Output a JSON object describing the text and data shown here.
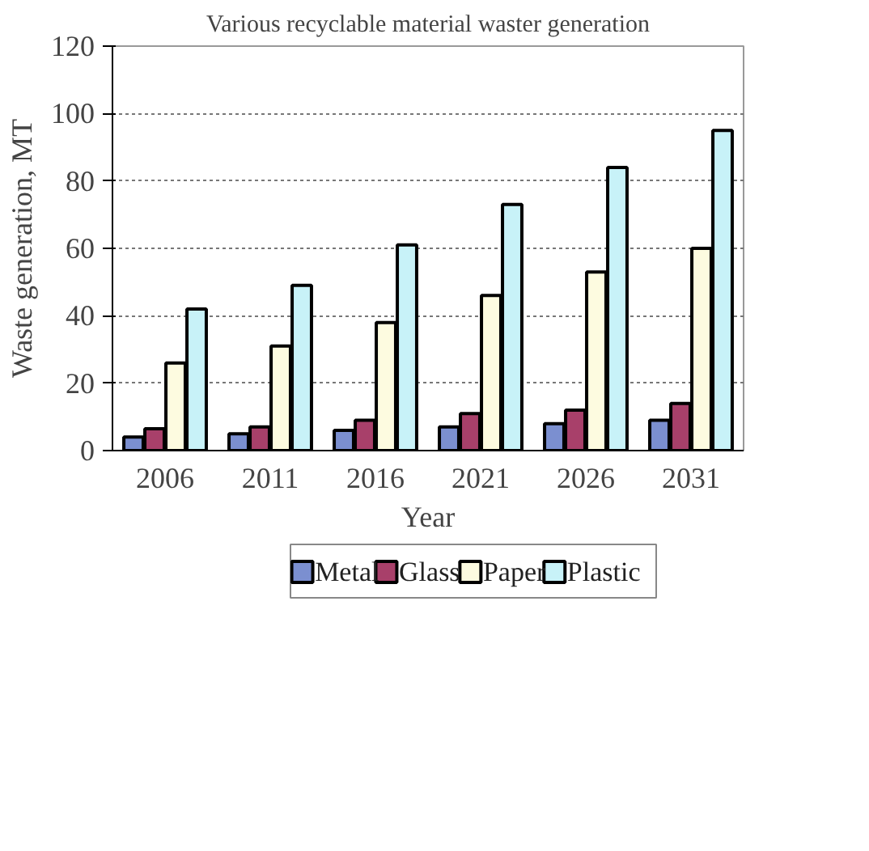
{
  "chart_data": {
    "type": "bar",
    "title": "Various recyclable material waster generation",
    "xlabel": "Year",
    "ylabel": "Waste generation, MT",
    "categories": [
      "2006",
      "2011",
      "2016",
      "2021",
      "2026",
      "2031"
    ],
    "series": [
      {
        "name": "Metal",
        "color": "#7b8fd0",
        "values": [
          4,
          5,
          6,
          7,
          8,
          9
        ]
      },
      {
        "name": "Glass",
        "color": "#a8406a",
        "values": [
          6.5,
          7,
          9,
          11,
          12,
          14
        ]
      },
      {
        "name": "Paper",
        "color": "#fdfbe0",
        "values": [
          26,
          31,
          38,
          46,
          53,
          60
        ]
      },
      {
        "name": "Plastic",
        "color": "#c8f2f8",
        "values": [
          42,
          49,
          61,
          73,
          84,
          95
        ]
      }
    ],
    "ylim": [
      0,
      120
    ],
    "yticks": [
      0,
      20,
      40,
      60,
      80,
      100,
      120
    ],
    "grid": "y",
    "legend": "bottom"
  }
}
